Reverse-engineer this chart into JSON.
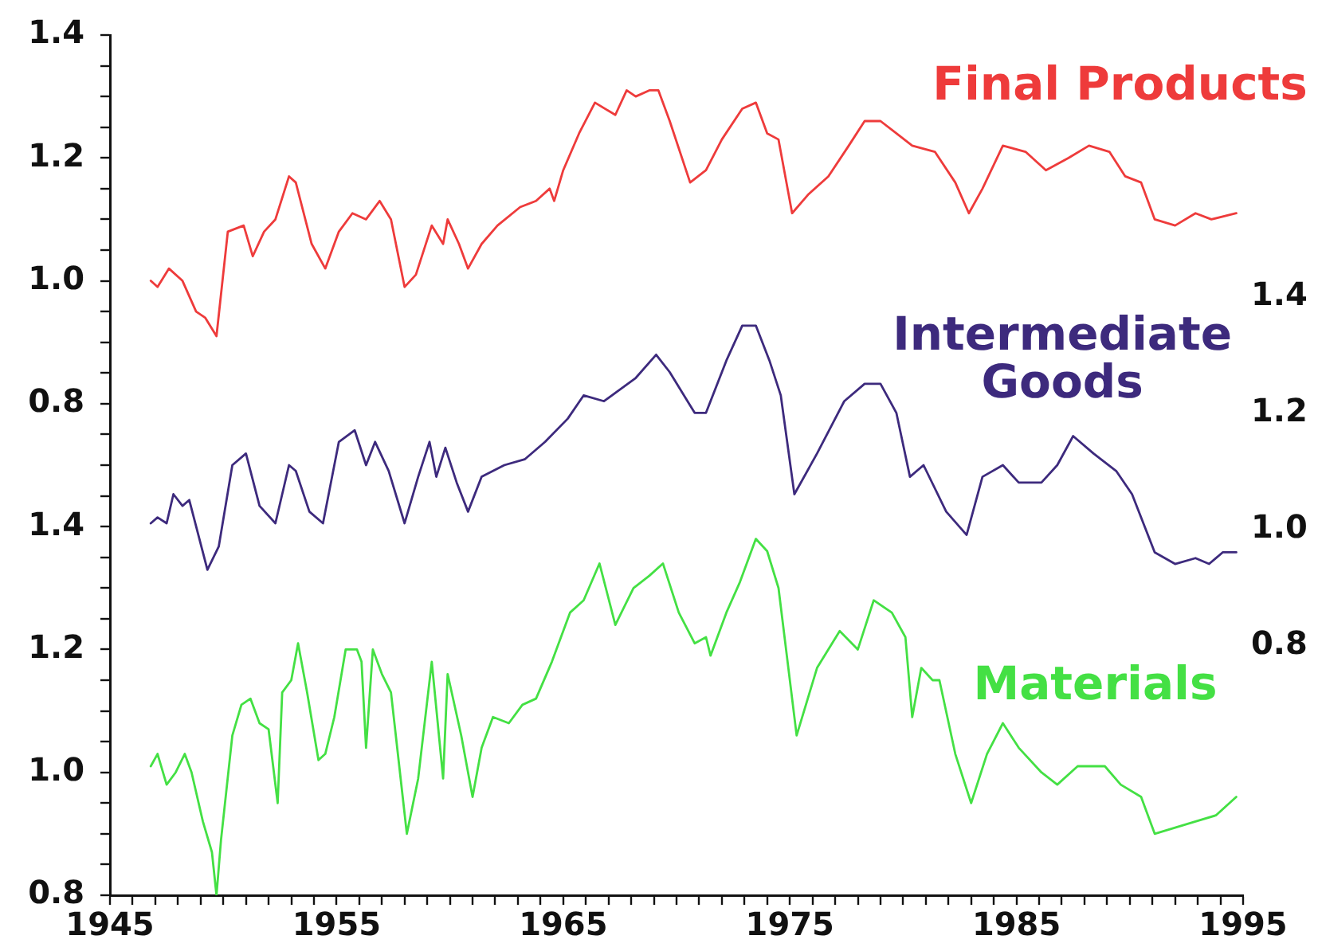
{
  "chart_data": {
    "type": "line",
    "grid": false,
    "legend": false,
    "marker": "none",
    "line_style": "solid",
    "xlim": [
      1945,
      1995
    ],
    "xticks": [
      1945,
      {
        "value": 1946,
        "label": null
      },
      {
        "value": 1947,
        "label": null
      },
      {
        "value": 1948,
        "label": null
      },
      {
        "value": 1949,
        "label": null
      },
      {
        "value": 1950,
        "label": null
      },
      {
        "value": 1951,
        "label": null
      },
      {
        "value": 1952,
        "label": null
      },
      {
        "value": 1953,
        "label": null
      },
      {
        "value": 1954,
        "label": null
      },
      1955,
      {
        "value": 1956,
        "label": null
      },
      {
        "value": 1957,
        "label": null
      },
      {
        "value": 1958,
        "label": null
      },
      {
        "value": 1959,
        "label": null
      },
      {
        "value": 1960,
        "label": null
      },
      {
        "value": 1961,
        "label": null
      },
      {
        "value": 1962,
        "label": null
      },
      {
        "value": 1963,
        "label": null
      },
      {
        "value": 1964,
        "label": null
      },
      1965,
      {
        "value": 1966,
        "label": null
      },
      {
        "value": 1967,
        "label": null
      },
      {
        "value": 1968,
        "label": null
      },
      {
        "value": 1969,
        "label": null
      },
      {
        "value": 1970,
        "label": null
      },
      {
        "value": 1971,
        "label": null
      },
      {
        "value": 1972,
        "label": null
      },
      {
        "value": 1973,
        "label": null
      },
      {
        "value": 1974,
        "label": null
      },
      1975,
      {
        "value": 1976,
        "label": null
      },
      {
        "value": 1977,
        "label": null
      },
      {
        "value": 1978,
        "label": null
      },
      {
        "value": 1979,
        "label": null
      },
      {
        "value": 1980,
        "label": null
      },
      {
        "value": 1981,
        "label": null
      },
      {
        "value": 1982,
        "label": null
      },
      {
        "value": 1983,
        "label": null
      },
      {
        "value": 1984,
        "label": null
      },
      1985,
      {
        "value": 1986,
        "label": null
      },
      {
        "value": 1987,
        "label": null
      },
      {
        "value": 1988,
        "label": null
      },
      {
        "value": 1989,
        "label": null
      },
      {
        "value": 1990,
        "label": null
      },
      {
        "value": 1991,
        "label": null
      },
      {
        "value": 1992,
        "label": null
      },
      {
        "value": 1993,
        "label": null
      },
      {
        "value": 1994,
        "label": null
      },
      1995
    ],
    "ylim": [
      0,
      1.4
    ],
    "yticks": [
      {
        "value": 0.65,
        "label": null
      },
      {
        "value": 0.7,
        "label": null
      },
      {
        "value": 0.75,
        "label": null
      },
      0.8,
      {
        "value": 0.85,
        "label": null
      },
      {
        "value": 0.9,
        "label": null
      },
      {
        "value": 0.95,
        "label": null
      },
      {
        "value": 1,
        "label": "1.0"
      },
      {
        "value": 1.05,
        "label": null
      },
      {
        "value": 1.1,
        "label": null
      },
      {
        "value": 1.15,
        "label": null
      },
      1.2,
      {
        "value": 1.25,
        "label": null
      },
      {
        "value": 1.3,
        "label": null
      },
      {
        "value": 1.35,
        "label": null
      },
      1.4
    ],
    "y2lim": [
      0.37,
      1.85
    ],
    "y2ticks": [
      0.8,
      {
        "value": 1,
        "label": "1.0"
      },
      1.2,
      1.4
    ],
    "y3lim": [
      0.8,
      2.2
    ],
    "y3ticks": [
      0.8,
      {
        "value": 0.85,
        "label": null
      },
      {
        "value": 0.9,
        "label": null
      },
      {
        "value": 0.95,
        "label": null
      },
      {
        "value": 1,
        "label": "1.0"
      },
      {
        "value": 1.05,
        "label": null
      },
      {
        "value": 1.1,
        "label": null
      },
      {
        "value": 1.15,
        "label": null
      },
      1.2,
      {
        "value": 1.25,
        "label": null
      },
      {
        "value": 1.3,
        "label": null
      },
      {
        "value": 1.35,
        "label": null
      },
      1.4
    ],
    "series": [
      {
        "name": "Final Products",
        "color": "#ee3b3b",
        "axis": "y",
        "x": [
          1946.8,
          1947.1,
          1947.6,
          1948.2,
          1948.8,
          1949.2,
          1949.7,
          1950.2,
          1950.9,
          1951.3,
          1951.8,
          1952.3,
          1952.9,
          1953.2,
          1953.9,
          1954.5,
          1955.1,
          1955.7,
          1956.3,
          1956.9,
          1957.4,
          1958.0,
          1958.5,
          1959.2,
          1959.7,
          1959.9,
          1960.4,
          1960.8,
          1961.4,
          1962.1,
          1963.1,
          1963.8,
          1964.4,
          1964.6,
          1965.0,
          1965.7,
          1966.4,
          1967.3,
          1967.8,
          1968.2,
          1968.8,
          1969.2,
          1969.7,
          1970.6,
          1971.3,
          1972.0,
          1972.9,
          1973.5,
          1974.0,
          1974.5,
          1975.1,
          1975.8,
          1976.7,
          1977.6,
          1978.3,
          1979.0,
          1979.7,
          1980.4,
          1981.4,
          1982.3,
          1982.9,
          1983.5,
          1984.4,
          1985.4,
          1986.3,
          1987.3,
          1988.2,
          1989.1,
          1989.8,
          1990.5,
          1991.1,
          1992.0,
          1992.9,
          1993.6,
          1994.7
        ],
        "values": [
          1.0,
          0.99,
          1.02,
          1.0,
          0.95,
          0.94,
          0.91,
          1.08,
          1.09,
          1.04,
          1.08,
          1.1,
          1.17,
          1.16,
          1.06,
          1.02,
          1.08,
          1.11,
          1.1,
          1.13,
          1.1,
          0.99,
          1.01,
          1.09,
          1.06,
          1.1,
          1.06,
          1.02,
          1.06,
          1.09,
          1.12,
          1.13,
          1.15,
          1.13,
          1.18,
          1.24,
          1.29,
          1.27,
          1.31,
          1.3,
          1.31,
          1.31,
          1.26,
          1.16,
          1.18,
          1.23,
          1.28,
          1.29,
          1.24,
          1.23,
          1.11,
          1.14,
          1.17,
          1.22,
          1.26,
          1.26,
          1.24,
          1.22,
          1.21,
          1.16,
          1.11,
          1.15,
          1.22,
          1.21,
          1.18,
          1.2,
          1.22,
          1.21,
          1.17,
          1.16,
          1.1,
          1.09,
          1.11,
          1.1,
          1.11
        ]
      },
      {
        "name": "Intermediate Goods",
        "color": "#3d2a7d",
        "axis": "y2",
        "x": [
          1946.8,
          1947.1,
          1947.5,
          1947.8,
          1948.2,
          1948.5,
          1948.9,
          1949.3,
          1949.8,
          1950.4,
          1951.0,
          1951.6,
          1952.3,
          1952.9,
          1953.2,
          1953.8,
          1954.4,
          1955.1,
          1955.8,
          1956.3,
          1956.7,
          1957.3,
          1958.0,
          1958.6,
          1959.1,
          1959.4,
          1959.8,
          1960.3,
          1960.8,
          1961.4,
          1962.4,
          1963.3,
          1964.2,
          1965.2,
          1965.9,
          1966.8,
          1967.5,
          1968.2,
          1969.1,
          1969.7,
          1970.8,
          1971.3,
          1972.2,
          1972.9,
          1973.5,
          1974.1,
          1974.6,
          1975.2,
          1976.2,
          1977.4,
          1978.3,
          1979.0,
          1979.7,
          1980.3,
          1980.9,
          1981.9,
          1982.8,
          1983.5,
          1984.4,
          1985.1,
          1986.1,
          1986.8,
          1987.5,
          1988.4,
          1989.4,
          1990.1,
          1991.1,
          1992.0,
          1992.9,
          1993.5,
          1994.1,
          1994.7
        ],
        "values": [
          1.01,
          1.02,
          1.01,
          1.06,
          1.04,
          1.05,
          0.99,
          0.93,
          0.97,
          1.11,
          1.13,
          1.04,
          1.01,
          1.11,
          1.1,
          1.03,
          1.01,
          1.15,
          1.17,
          1.11,
          1.15,
          1.1,
          1.01,
          1.09,
          1.15,
          1.09,
          1.14,
          1.08,
          1.03,
          1.09,
          1.11,
          1.12,
          1.15,
          1.19,
          1.23,
          1.22,
          1.24,
          1.26,
          1.3,
          1.27,
          1.2,
          1.2,
          1.29,
          1.35,
          1.35,
          1.29,
          1.23,
          1.06,
          1.13,
          1.22,
          1.25,
          1.25,
          1.2,
          1.09,
          1.11,
          1.03,
          0.99,
          1.09,
          1.11,
          1.08,
          1.08,
          1.11,
          1.16,
          1.13,
          1.1,
          1.06,
          0.96,
          0.94,
          0.95,
          0.94,
          0.96,
          0.96
        ]
      },
      {
        "name": "Materials",
        "color": "#44e044",
        "axis": "y3",
        "x": [
          1946.8,
          1947.1,
          1947.5,
          1947.9,
          1948.3,
          1948.6,
          1949.1,
          1949.5,
          1949.7,
          1949.9,
          1950.4,
          1950.8,
          1951.2,
          1951.6,
          1952.0,
          1952.4,
          1952.6,
          1953.0,
          1953.3,
          1953.7,
          1954.2,
          1954.5,
          1954.9,
          1955.4,
          1955.9,
          1956.1,
          1956.3,
          1956.6,
          1957.0,
          1957.4,
          1958.1,
          1958.6,
          1959.2,
          1959.7,
          1959.9,
          1960.5,
          1961.0,
          1961.4,
          1961.9,
          1962.6,
          1963.2,
          1963.8,
          1964.5,
          1965.3,
          1965.9,
          1966.6,
          1967.3,
          1968.1,
          1968.8,
          1969.4,
          1970.1,
          1970.8,
          1971.3,
          1971.5,
          1972.2,
          1972.8,
          1973.5,
          1974.0,
          1974.5,
          1975.3,
          1976.2,
          1977.2,
          1978.0,
          1978.7,
          1979.5,
          1980.1,
          1980.4,
          1980.8,
          1981.3,
          1981.6,
          1982.3,
          1983.0,
          1983.7,
          1984.4,
          1985.1,
          1986.1,
          1986.8,
          1987.7,
          1988.9,
          1989.6,
          1990.5,
          1991.1,
          1992.0,
          1992.9,
          1993.8,
          1994.7
        ],
        "values": [
          1.01,
          1.03,
          0.98,
          1.0,
          1.03,
          1.0,
          0.92,
          0.87,
          0.8,
          0.89,
          1.06,
          1.11,
          1.12,
          1.08,
          1.07,
          0.95,
          1.13,
          1.15,
          1.21,
          1.13,
          1.02,
          1.03,
          1.09,
          1.2,
          1.2,
          1.18,
          1.04,
          1.2,
          1.16,
          1.13,
          0.9,
          0.99,
          1.18,
          0.99,
          1.16,
          1.06,
          0.96,
          1.04,
          1.09,
          1.08,
          1.11,
          1.12,
          1.18,
          1.26,
          1.28,
          1.34,
          1.24,
          1.3,
          1.32,
          1.34,
          1.26,
          1.21,
          1.22,
          1.19,
          1.26,
          1.31,
          1.38,
          1.36,
          1.3,
          1.06,
          1.17,
          1.23,
          1.2,
          1.28,
          1.26,
          1.22,
          1.09,
          1.17,
          1.15,
          1.15,
          1.03,
          0.95,
          1.03,
          1.08,
          1.04,
          1.0,
          0.98,
          1.01,
          1.01,
          0.98,
          0.96,
          0.9,
          0.91,
          0.92,
          0.93,
          0.96
        ]
      }
    ]
  }
}
